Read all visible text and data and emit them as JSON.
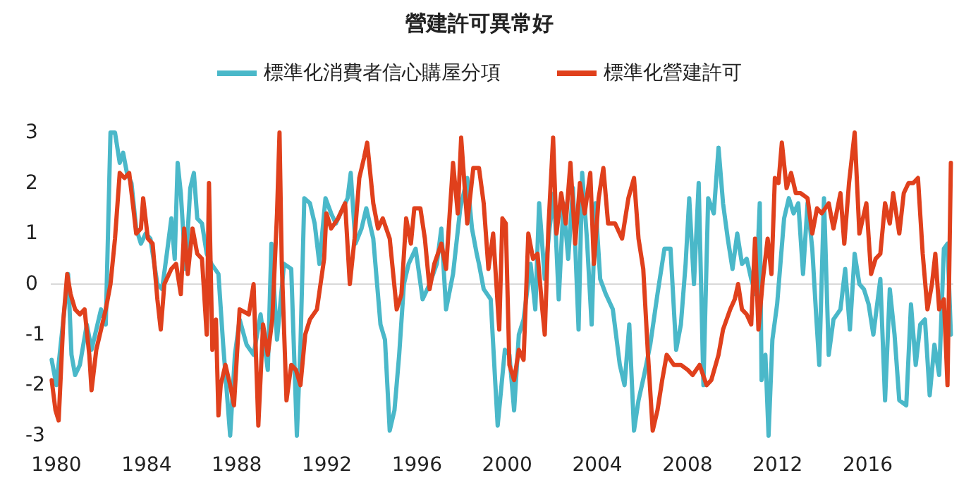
{
  "chart_data": {
    "type": "line",
    "title": "營建許可異常好",
    "xlim": [
      1979.75,
      2019.8
    ],
    "xticks": [
      1980,
      1984,
      1988,
      1992,
      1996,
      2000,
      2004,
      2008,
      2012,
      2016
    ],
    "ylim": [
      -3,
      3
    ],
    "yticks": [
      -3,
      -2,
      -1,
      0,
      1,
      2,
      3
    ],
    "grid": false,
    "legend": "top",
    "marker": "none",
    "line_style": "solid",
    "ref_lines": [
      {
        "axis": "y",
        "value": 0,
        "color": "#d9d9d9"
      }
    ],
    "series": [
      {
        "name": "標準化消費者信心購屋分項",
        "color": "#4ab8c9",
        "x": [
          1979.79,
          1980.0,
          1980.31,
          1980.52,
          1980.67,
          1980.83,
          1981.04,
          1981.35,
          1981.56,
          1981.77,
          1981.98,
          1982.19,
          1982.4,
          1982.6,
          1982.81,
          1982.96,
          1983.13,
          1983.33,
          1983.54,
          1983.75,
          1983.96,
          1984.17,
          1984.48,
          1984.69,
          1984.9,
          1985.1,
          1985.25,
          1985.38,
          1985.52,
          1985.73,
          1985.94,
          1986.1,
          1986.25,
          1986.46,
          1986.67,
          1986.88,
          1987.19,
          1987.4,
          1987.71,
          1987.92,
          1988.13,
          1988.44,
          1988.75,
          1989.06,
          1989.38,
          1989.54,
          1989.79,
          1990.1,
          1990.42,
          1990.67,
          1990.83,
          1991.0,
          1991.25,
          1991.46,
          1991.67,
          1991.94,
          1992.19,
          1992.4,
          1992.6,
          1992.92,
          1993.06,
          1993.27,
          1993.54,
          1993.75,
          1994.06,
          1994.38,
          1994.58,
          1994.79,
          1995.0,
          1995.21,
          1995.42,
          1995.63,
          1995.94,
          1996.25,
          1996.56,
          1996.88,
          1997.08,
          1997.29,
          1997.6,
          1997.92,
          1998.23,
          1998.44,
          1998.65,
          1998.75,
          1998.96,
          1999.27,
          1999.48,
          1999.58,
          1999.9,
          2000.1,
          2000.31,
          2000.52,
          2000.73,
          2001.04,
          2001.25,
          2001.42,
          2001.67,
          2001.88,
          2002.08,
          2002.29,
          2002.5,
          2002.71,
          2002.92,
          2003.17,
          2003.33,
          2003.54,
          2003.75,
          2003.92,
          2004.13,
          2004.38,
          2004.69,
          2005.0,
          2005.21,
          2005.42,
          2005.63,
          2005.83,
          2006.08,
          2006.35,
          2006.67,
          2006.98,
          2007.25,
          2007.5,
          2007.71,
          2007.92,
          2008.08,
          2008.29,
          2008.5,
          2008.71,
          2008.92,
          2009.17,
          2009.38,
          2009.58,
          2009.79,
          2010.0,
          2010.21,
          2010.42,
          2010.63,
          2010.83,
          2011.04,
          2011.21,
          2011.29,
          2011.46,
          2011.6,
          2011.77,
          2011.98,
          2012.29,
          2012.5,
          2012.71,
          2012.92,
          2013.13,
          2013.33,
          2013.54,
          2013.71,
          2013.85,
          2014.06,
          2014.27,
          2014.48,
          2014.79,
          2015.0,
          2015.21,
          2015.42,
          2015.63,
          2015.83,
          2016.04,
          2016.25,
          2016.56,
          2016.77,
          2016.98,
          2017.19,
          2017.4,
          2017.71,
          2017.92,
          2018.13,
          2018.33,
          2018.54,
          2018.75,
          2018.96,
          2019.17,
          2019.38,
          2019.54,
          2019.69
        ],
        "values": [
          -1.5,
          -2.0,
          -0.7,
          0.2,
          -1.4,
          -1.8,
          -1.6,
          -0.8,
          -1.3,
          -0.9,
          -0.5,
          -0.8,
          3.0,
          3.0,
          2.4,
          2.6,
          2.2,
          2.0,
          1.1,
          0.8,
          1.0,
          0.9,
          0.0,
          -0.1,
          0.6,
          1.3,
          0.5,
          2.4,
          1.8,
          0.3,
          1.9,
          2.2,
          1.3,
          1.2,
          0.6,
          0.4,
          0.2,
          -1.2,
          -3.0,
          -1.4,
          -0.7,
          -1.2,
          -1.4,
          -0.6,
          -1.7,
          0.8,
          -1.1,
          0.4,
          0.3,
          -3.0,
          -1.2,
          1.7,
          1.6,
          1.2,
          0.4,
          1.7,
          1.4,
          1.2,
          1.4,
          1.7,
          2.2,
          0.8,
          1.1,
          1.5,
          0.9,
          -0.8,
          -1.1,
          -2.9,
          -2.5,
          -1.4,
          0.0,
          0.4,
          0.7,
          -0.3,
          0.0,
          0.4,
          1.1,
          -0.5,
          0.2,
          1.5,
          2.1,
          1.1,
          0.6,
          0.4,
          -0.1,
          -0.3,
          -2.0,
          -2.8,
          -1.3,
          -1.4,
          -2.5,
          -1.0,
          -0.7,
          0.4,
          -0.5,
          1.6,
          0.1,
          1.1,
          1.8,
          -0.3,
          1.6,
          0.5,
          1.9,
          -0.9,
          2.2,
          0.9,
          -0.8,
          1.6,
          0.1,
          -0.2,
          -0.5,
          -1.6,
          -2.0,
          -0.8,
          -2.9,
          -2.3,
          -1.8,
          -1.2,
          -0.2,
          0.7,
          0.7,
          -1.3,
          -0.8,
          0.4,
          1.7,
          0.0,
          2.0,
          -2.0,
          1.7,
          1.4,
          2.7,
          1.6,
          0.9,
          0.3,
          1.0,
          0.4,
          0.5,
          0.1,
          -0.2,
          1.6,
          -1.9,
          -1.4,
          -3.0,
          -1.1,
          -0.4,
          1.3,
          1.7,
          1.4,
          1.6,
          0.2,
          1.6,
          0.7,
          -0.6,
          -1.6,
          1.7,
          -1.4,
          -0.7,
          -0.5,
          0.3,
          -0.9,
          0.6,
          0.0,
          -0.1,
          -0.4,
          -1.0,
          0.1,
          -2.3,
          -0.1,
          -1.0,
          -2.3,
          -2.4,
          -0.4,
          -1.6,
          -0.8,
          -0.7,
          -2.2,
          -1.2,
          -1.8,
          0.7,
          0.8,
          -1.0
        ]
      },
      {
        "name": "標準化營建許可",
        "color": "#e0401c",
        "x": [
          1979.79,
          1979.96,
          1980.1,
          1980.31,
          1980.48,
          1980.63,
          1980.83,
          1981.04,
          1981.25,
          1981.46,
          1981.56,
          1981.77,
          1981.98,
          1982.19,
          1982.4,
          1982.6,
          1982.81,
          1983.02,
          1983.23,
          1983.44,
          1983.54,
          1983.75,
          1983.85,
          1984.06,
          1984.27,
          1984.48,
          1984.63,
          1984.79,
          1985.1,
          1985.31,
          1985.52,
          1985.67,
          1985.83,
          1986.04,
          1986.25,
          1986.46,
          1986.67,
          1986.77,
          1986.92,
          1987.08,
          1987.19,
          1987.29,
          1987.5,
          1987.71,
          1987.88,
          1988.13,
          1988.54,
          1988.75,
          1988.96,
          1989.17,
          1989.38,
          1989.58,
          1989.79,
          1989.9,
          1990.0,
          1990.21,
          1990.42,
          1990.63,
          1990.83,
          1991.04,
          1991.25,
          1991.56,
          1991.88,
          1991.98,
          1992.19,
          1992.5,
          1992.81,
          1993.02,
          1993.23,
          1993.44,
          1993.65,
          1993.79,
          1994.06,
          1994.27,
          1994.48,
          1994.79,
          1995.1,
          1995.31,
          1995.52,
          1995.73,
          1995.88,
          1996.15,
          1996.35,
          1996.56,
          1996.77,
          1997.08,
          1997.29,
          1997.6,
          1997.81,
          1997.96,
          1998.23,
          1998.5,
          1998.75,
          1998.96,
          1999.17,
          1999.38,
          1999.65,
          1999.79,
          1999.94,
          2000.1,
          2000.31,
          2000.52,
          2000.73,
          2000.94,
          2001.15,
          2001.35,
          2001.56,
          2001.67,
          2001.83,
          2002.04,
          2002.19,
          2002.4,
          2002.6,
          2002.81,
          2003.02,
          2003.23,
          2003.44,
          2003.69,
          2003.85,
          2004.06,
          2004.27,
          2004.48,
          2004.79,
          2005.1,
          2005.38,
          2005.63,
          2005.83,
          2006.04,
          2006.25,
          2006.46,
          2006.67,
          2006.88,
          2007.08,
          2007.4,
          2007.71,
          2008.02,
          2008.23,
          2008.54,
          2008.85,
          2009.06,
          2009.38,
          2009.58,
          2009.9,
          2010.1,
          2010.25,
          2010.42,
          2010.63,
          2010.83,
          2011.0,
          2011.15,
          2011.35,
          2011.56,
          2011.73,
          2011.88,
          2012.04,
          2012.19,
          2012.4,
          2012.6,
          2012.81,
          2013.02,
          2013.33,
          2013.54,
          2013.75,
          2013.96,
          2014.27,
          2014.48,
          2014.79,
          2014.96,
          2015.17,
          2015.42,
          2015.63,
          2015.94,
          2016.15,
          2016.35,
          2016.56,
          2016.77,
          2016.98,
          2017.13,
          2017.4,
          2017.6,
          2017.81,
          2018.02,
          2018.23,
          2018.44,
          2018.65,
          2018.85,
          2019.0,
          2019.17,
          2019.38,
          2019.54,
          2019.69
        ],
        "values": [
          -1.9,
          -2.5,
          -2.7,
          -0.7,
          0.2,
          -0.2,
          -0.5,
          -0.6,
          -0.5,
          -1.4,
          -2.1,
          -1.3,
          -0.9,
          -0.5,
          0.0,
          0.9,
          2.2,
          2.1,
          2.2,
          1.4,
          1.0,
          1.1,
          1.7,
          0.9,
          0.8,
          -0.3,
          -0.9,
          0.0,
          0.3,
          0.4,
          -0.2,
          1.1,
          0.2,
          1.1,
          0.6,
          0.5,
          -1.0,
          2.0,
          -1.3,
          -0.7,
          -2.6,
          -2.0,
          -1.6,
          -2.0,
          -2.4,
          -0.5,
          -0.6,
          0.0,
          -2.8,
          -0.8,
          -1.4,
          -0.7,
          1.4,
          3.0,
          0.4,
          -2.3,
          -1.6,
          -1.7,
          -2.0,
          -1.0,
          -0.7,
          -0.5,
          0.5,
          1.4,
          1.1,
          1.3,
          1.6,
          0.0,
          0.9,
          2.1,
          2.5,
          2.8,
          1.6,
          1.1,
          1.3,
          0.9,
          -0.5,
          -0.2,
          1.3,
          0.8,
          1.5,
          1.5,
          0.9,
          -0.1,
          0.4,
          0.8,
          0.3,
          2.4,
          1.4,
          2.9,
          1.2,
          2.3,
          2.3,
          1.6,
          0.3,
          1.0,
          -0.9,
          1.3,
          1.2,
          -1.6,
          -1.9,
          -1.3,
          -1.5,
          1.0,
          0.5,
          0.6,
          -0.5,
          -1.0,
          1.1,
          2.9,
          1.0,
          1.8,
          1.2,
          2.4,
          0.8,
          2.0,
          1.4,
          2.2,
          0.4,
          1.7,
          2.3,
          1.2,
          1.2,
          0.9,
          1.7,
          2.1,
          0.9,
          0.3,
          -1.4,
          -2.9,
          -2.5,
          -1.9,
          -1.4,
          -1.6,
          -1.6,
          -1.7,
          -1.8,
          -1.6,
          -2.0,
          -1.9,
          -1.4,
          -0.9,
          -0.5,
          -0.3,
          0.0,
          -0.5,
          -0.6,
          -0.8,
          0.9,
          -0.9,
          0.1,
          0.9,
          0.2,
          2.1,
          2.0,
          2.8,
          1.9,
          2.2,
          1.8,
          1.8,
          1.7,
          1.0,
          1.5,
          1.4,
          1.6,
          1.1,
          1.8,
          0.8,
          2.0,
          3.0,
          1.0,
          1.6,
          0.2,
          0.5,
          0.6,
          1.6,
          1.2,
          1.8,
          1.0,
          1.8,
          2.0,
          2.0,
          2.1,
          0.6,
          -0.5,
          0.0,
          0.6,
          -0.5,
          -0.3,
          -2.0,
          2.4
        ]
      }
    ]
  }
}
